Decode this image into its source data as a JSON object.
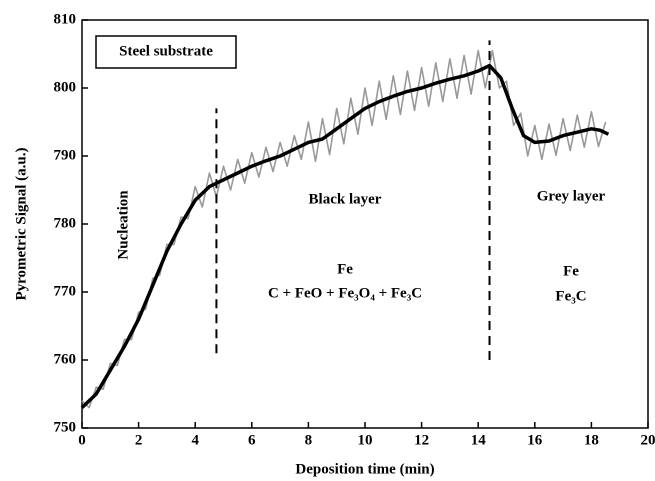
{
  "chart_data": {
    "type": "line",
    "x_label": "Deposition time (min)",
    "y_label": "Pyrometric Signal (a.u.)",
    "xlim": [
      0,
      20
    ],
    "xticks": [
      0,
      2,
      4,
      6,
      8,
      10,
      12,
      14,
      16,
      18,
      20
    ],
    "ylim": [
      750,
      810
    ],
    "yticks": [
      750,
      760,
      770,
      780,
      790,
      800,
      810
    ],
    "series": [
      {
        "color": "#999999",
        "x": [
          0,
          0.25,
          0.5,
          0.75,
          1,
          1.25,
          1.5,
          1.75,
          2,
          2.25,
          2.5,
          2.75,
          3,
          3.25,
          3.5,
          3.75,
          4,
          4.25,
          4.5,
          4.75,
          5,
          5.25,
          5.5,
          5.75,
          6,
          6.25,
          6.5,
          6.75,
          7,
          7.25,
          7.5,
          7.75,
          8,
          8.25,
          8.5,
          8.75,
          9,
          9.25,
          9.5,
          9.75,
          10,
          10.25,
          10.5,
          10.75,
          11,
          11.25,
          11.5,
          11.75,
          12,
          12.25,
          12.5,
          12.75,
          13,
          13.25,
          13.5,
          13.75,
          14,
          14.25,
          14.5,
          14.75,
          15,
          15.25,
          15.5,
          15.75,
          16,
          16.25,
          16.5,
          16.75,
          17,
          17.25,
          17.5,
          17.75,
          18,
          18.25,
          18.5
        ],
        "values": [
          754,
          753,
          756,
          755.7,
          759.5,
          759.2,
          763,
          763,
          767,
          767.5,
          772,
          772.5,
          777,
          777,
          781,
          780.8,
          785.5,
          782.5,
          787.5,
          784,
          788.5,
          785,
          789.5,
          786,
          790.5,
          786.9,
          791.3,
          787.7,
          792,
          788.5,
          793,
          789.5,
          795,
          789.2,
          795.5,
          790.2,
          797,
          791.8,
          798.5,
          793.2,
          800,
          794.5,
          801,
          795.4,
          801.8,
          796.1,
          802.5,
          796.7,
          803,
          797.3,
          803.7,
          798,
          804.3,
          798.5,
          804.8,
          799.1,
          805.5,
          800,
          805.5,
          800,
          801,
          794.5,
          796.3,
          790,
          794.5,
          789.5,
          794.7,
          790.1,
          795.5,
          790.8,
          796,
          791.3,
          796.5,
          791.4,
          795
        ]
      },
      {
        "color": "#000000",
        "x": [
          0,
          0.5,
          1,
          1.5,
          2,
          2.5,
          3,
          3.5,
          4,
          4.5,
          5,
          5.5,
          6,
          6.5,
          7,
          7.5,
          8,
          8.5,
          9,
          9.5,
          10,
          10.5,
          11,
          11.5,
          12,
          12.5,
          13,
          13.5,
          14,
          14.4,
          14.8,
          15.2,
          15.6,
          16,
          16.5,
          17,
          17.5,
          18,
          18.3,
          18.6
        ],
        "values": [
          753,
          755,
          758.5,
          762,
          766,
          771,
          776,
          780,
          783.5,
          785.5,
          786.5,
          787.5,
          788.5,
          789.3,
          790,
          791,
          792,
          792.5,
          794,
          795.5,
          797,
          798,
          798.8,
          799.5,
          800,
          800.7,
          801.3,
          801.8,
          802.5,
          803.3,
          801.5,
          797,
          793,
          792,
          792.2,
          793,
          793.5,
          794,
          793.8,
          793.2
        ]
      }
    ],
    "dividers": [
      4.75,
      14.4
    ],
    "annotations": [
      "Steel substrate",
      "Nucleation",
      "Black layer",
      "Fe",
      "C + FeO + Fe₃O₄ + Fe₃C",
      "Grey layer",
      "Fe",
      "Fe₃C"
    ]
  }
}
